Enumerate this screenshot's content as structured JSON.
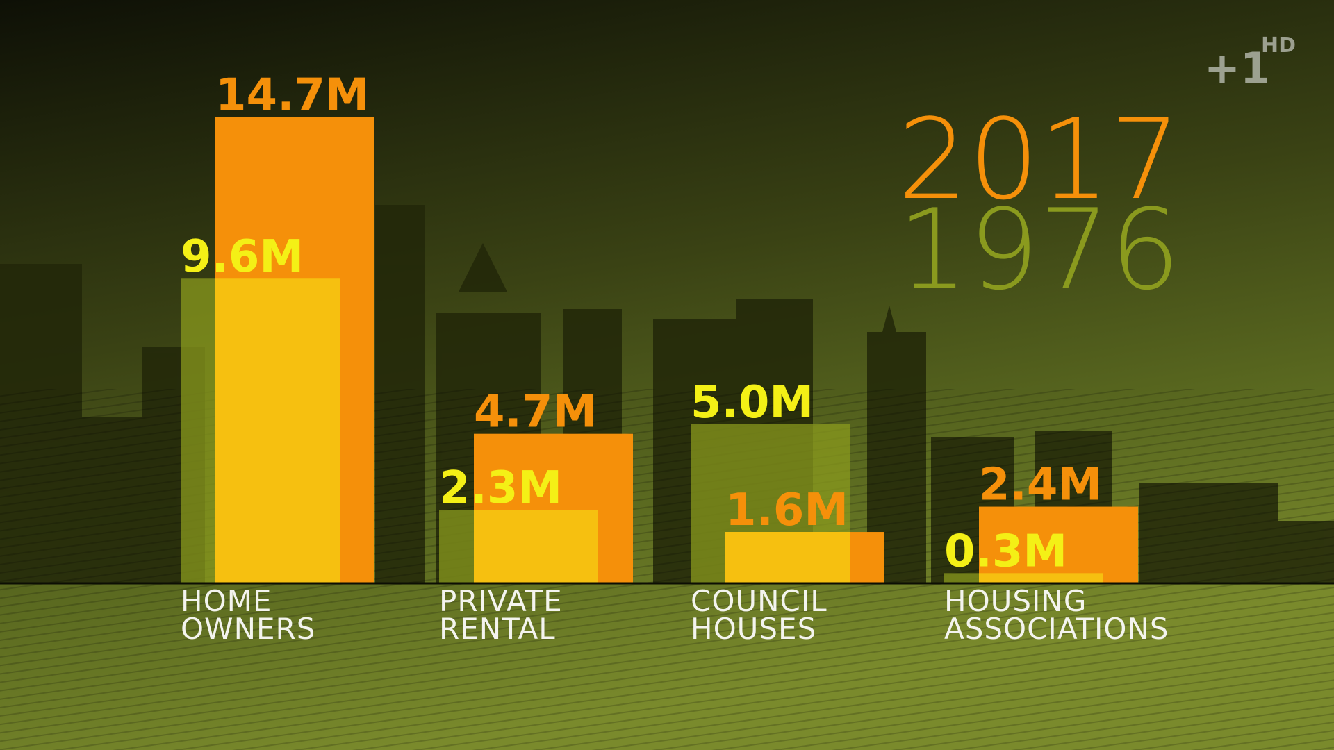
{
  "chart_data": {
    "type": "bar",
    "categories": [
      "HOME OWNERS",
      "PRIVATE RENTAL",
      "COUNCIL HOUSES",
      "HOUSING ASSOCIATIONS"
    ],
    "series": [
      {
        "name": "1976",
        "color": "#8a9a1e",
        "label_color": "#f4f016",
        "overlap_color": "#f6c010",
        "values": [
          9.6,
          2.3,
          5.0,
          0.3
        ],
        "value_labels": [
          "9.6M",
          "2.3M",
          "5.0M",
          "0.3M"
        ]
      },
      {
        "name": "2017",
        "color": "#f5900a",
        "values": [
          14.7,
          4.7,
          1.6,
          2.4
        ],
        "value_labels": [
          "14.7M",
          "4.7M",
          "1.6M",
          "2.4M"
        ]
      }
    ],
    "legend": "top-right"
  },
  "logo": {
    "mark": "+1",
    "badge": "HD"
  }
}
